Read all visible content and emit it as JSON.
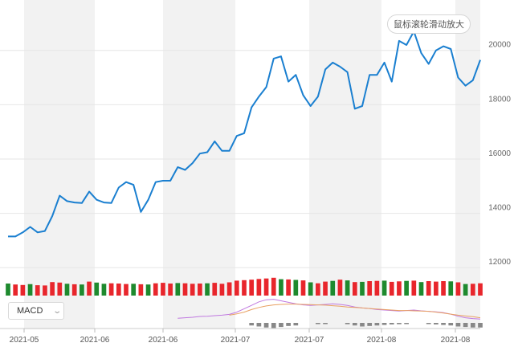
{
  "zoom_hint": "鼠标滚轮滑动放大",
  "indicator": {
    "selected": "MACD",
    "chevron_icon": "chevron-down-icon"
  },
  "colors": {
    "price_line": "#1a7fd0",
    "volume_up": "#e8262c",
    "volume_down": "#1e8a2e",
    "band": "#f2f2f2",
    "dif_line": "#c079e0",
    "dea_line": "#e8a062",
    "macd_bar": "#888888"
  },
  "chart_data": {
    "type": "line",
    "x_tick_labels": [
      "2021-05",
      "2021-06",
      "2021-06",
      "2021-07",
      "2021-07",
      "2021-08",
      "2021-08"
    ],
    "y_tick_labels": [
      "12000",
      "14000",
      "16000",
      "18000",
      "20000"
    ],
    "ylim": [
      11800,
      21500
    ],
    "grid": true,
    "series": [
      {
        "values": [
          13150,
          13150,
          13300,
          13500,
          13300,
          13350,
          13900,
          14650,
          14450,
          14400,
          14380,
          14800,
          14500,
          14400,
          14380,
          14950,
          15150,
          15050,
          14050,
          14500,
          15150,
          15200,
          15200,
          15700,
          15600,
          15850,
          16200,
          16250,
          16650,
          16300,
          16300,
          16850,
          16950,
          17900,
          18300,
          18650,
          19700,
          19780,
          18850,
          19100,
          18350,
          17950,
          18300,
          19300,
          19550,
          19400,
          19200,
          17850,
          17950,
          19100,
          19100,
          19550,
          18850,
          20350,
          20200,
          20700,
          19900,
          19500,
          20000,
          20150,
          20050,
          19000,
          18700,
          18900,
          19650
        ]
      }
    ],
    "volume": {
      "values": [
        1.0,
        0.92,
        0.88,
        0.95,
        0.86,
        0.84,
        1.12,
        1.08,
        0.98,
        0.94,
        0.92,
        1.16,
        1.08,
        0.98,
        1.02,
        1.0,
        0.96,
        0.98,
        0.94,
        0.92,
        1.02,
        1.06,
        1.0,
        1.04,
        1.02,
        0.98,
        1.0,
        1.02,
        1.06,
        0.98,
        1.1,
        1.24,
        1.28,
        1.32,
        1.38,
        1.42,
        1.48,
        1.36,
        1.34,
        1.3,
        1.26,
        1.1,
        1.02,
        1.16,
        1.22,
        1.32,
        1.26,
        1.12,
        1.14,
        1.2,
        1.22,
        1.24,
        1.14,
        1.18,
        1.22,
        1.24,
        1.12,
        1.2,
        1.16,
        1.2,
        1.18,
        1.1,
        0.96,
        0.98,
        1.02
      ],
      "direction": [
        "down",
        "up",
        "up",
        "down",
        "up",
        "up",
        "up",
        "up",
        "down",
        "up",
        "down",
        "up",
        "down",
        "down",
        "up",
        "up",
        "up",
        "down",
        "up",
        "down",
        "up",
        "up",
        "up",
        "down",
        "up",
        "up",
        "up",
        "down",
        "up",
        "up",
        "up",
        "up",
        "up",
        "up",
        "up",
        "up",
        "up",
        "down",
        "up",
        "down",
        "up",
        "down",
        "up",
        "up",
        "down",
        "up",
        "down",
        "up",
        "down",
        "up",
        "up",
        "down",
        "up",
        "up",
        "down",
        "up",
        "down",
        "up",
        "up",
        "up",
        "down",
        "up",
        "down",
        "up",
        "up"
      ]
    },
    "macd": {
      "dif": [
        null,
        null,
        null,
        null,
        null,
        null,
        null,
        null,
        null,
        null,
        null,
        null,
        null,
        null,
        null,
        null,
        null,
        null,
        null,
        null,
        null,
        null,
        null,
        0.18,
        0.2,
        0.22,
        0.25,
        0.26,
        0.28,
        0.3,
        0.33,
        0.42,
        0.55,
        0.68,
        0.82,
        0.9,
        0.92,
        0.86,
        0.8,
        0.74,
        0.7,
        0.68,
        0.7,
        0.72,
        0.74,
        0.72,
        0.68,
        0.62,
        0.58,
        0.56,
        0.52,
        0.5,
        0.48,
        0.46,
        0.48,
        0.5,
        0.47,
        0.45,
        0.43,
        0.4,
        0.34,
        0.26,
        0.2,
        0.17,
        0.15
      ],
      "dea": [
        null,
        null,
        null,
        null,
        null,
        null,
        null,
        null,
        null,
        null,
        null,
        null,
        null,
        null,
        null,
        null,
        null,
        null,
        null,
        null,
        null,
        null,
        null,
        null,
        null,
        null,
        null,
        null,
        null,
        null,
        0.3,
        0.35,
        0.42,
        0.52,
        0.6,
        0.66,
        0.7,
        0.72,
        0.73,
        0.73,
        0.72,
        0.71,
        0.7,
        0.69,
        0.67,
        0.65,
        0.62,
        0.6,
        0.58,
        0.56,
        0.54,
        0.52,
        0.5,
        0.48,
        0.48,
        0.47,
        0.46,
        0.45,
        0.42,
        0.38,
        0.34,
        0.3,
        0.27,
        0.24,
        0.2
      ],
      "hist": [
        null,
        null,
        null,
        null,
        null,
        null,
        null,
        null,
        null,
        null,
        null,
        null,
        null,
        null,
        null,
        null,
        null,
        null,
        null,
        null,
        null,
        null,
        null,
        null,
        null,
        null,
        null,
        null,
        null,
        null,
        null,
        null,
        null,
        -0.1,
        -0.14,
        -0.18,
        -0.2,
        -0.16,
        -0.12,
        -0.1,
        null,
        null,
        -0.04,
        -0.03,
        null,
        null,
        -0.05,
        -0.1,
        -0.14,
        -0.12,
        -0.1,
        -0.08,
        -0.06,
        -0.05,
        -0.04,
        null,
        null,
        -0.04,
        -0.06,
        -0.08,
        -0.1,
        -0.14,
        -0.16,
        -0.18,
        -0.18
      ]
    }
  }
}
